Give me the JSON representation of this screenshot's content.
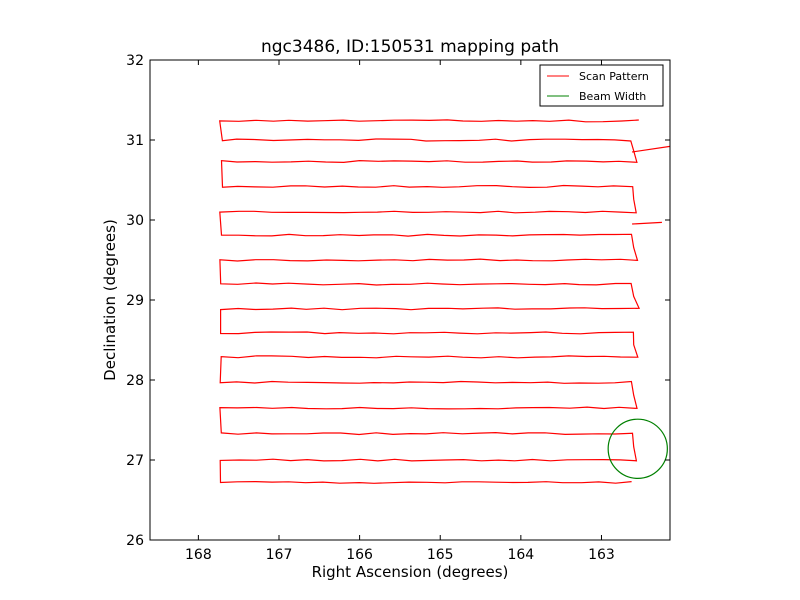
{
  "chart_data": {
    "type": "line",
    "title": "ngc3486, ID:150531 mapping path",
    "xlabel": "Right Ascension (degrees)",
    "ylabel": "Declination (degrees)",
    "xlim": [
      168.6,
      162.15
    ],
    "ylim": [
      26,
      32
    ],
    "x_ticks": [
      168,
      167,
      166,
      165,
      164,
      163
    ],
    "y_ticks": [
      26,
      27,
      28,
      29,
      30,
      31,
      32
    ],
    "x_tick_labels": [
      "168",
      "167",
      "166",
      "165",
      "164",
      "163"
    ],
    "y_tick_labels": [
      "26",
      "27",
      "28",
      "29",
      "30",
      "31",
      "32"
    ],
    "grid": false,
    "legend_position": "top-right",
    "series": [
      {
        "name": "Scan Pattern",
        "color": "#ff0000",
        "x_left": 167.72,
        "x_right": 162.55,
        "x_return": 162.62,
        "dec_rows": [
          26.72,
          27.0,
          27.33,
          27.65,
          27.97,
          28.29,
          28.59,
          28.89,
          29.2,
          29.5,
          29.81,
          30.1,
          30.42,
          30.73,
          31.0,
          31.24
        ],
        "scan_excursions": [
          {
            "from": [
              162.62,
              30.85
            ],
            "to": [
              162.15,
              30.92
            ]
          },
          {
            "from": [
              162.62,
              29.95
            ],
            "to": [
              162.25,
              29.97
            ]
          }
        ]
      },
      {
        "name": "Beam Width",
        "color": "#008000",
        "center": [
          162.55,
          27.14
        ],
        "radius_deg": 0.37
      }
    ]
  }
}
